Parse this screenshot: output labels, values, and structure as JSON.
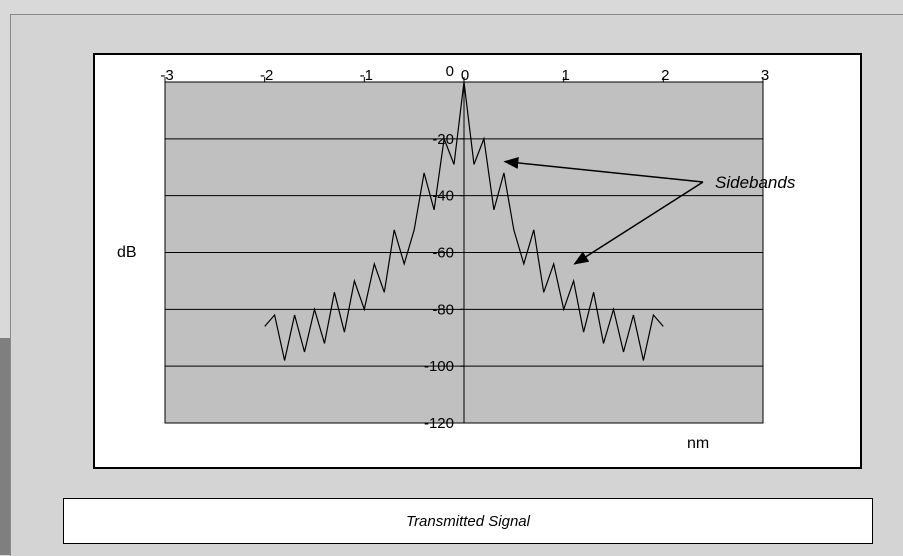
{
  "chart_data": {
    "type": "line",
    "title": "",
    "xlabel": "nm",
    "ylabel": "dB",
    "xlim": [
      -3,
      3
    ],
    "ylim": [
      -120,
      0
    ],
    "x_ticks": [
      "-3",
      "-2",
      "-1",
      "0",
      "1",
      "2",
      "3"
    ],
    "y_ticks": [
      "0",
      "-20",
      "-40",
      "-60",
      "-80",
      "-100",
      "-120"
    ],
    "grid": true,
    "series": [
      {
        "values": [
          [
            -2.0,
            -86
          ],
          [
            -1.9,
            -82
          ],
          [
            -1.8,
            -98
          ],
          [
            -1.7,
            -82
          ],
          [
            -1.6,
            -95
          ],
          [
            -1.5,
            -80
          ],
          [
            -1.4,
            -92
          ],
          [
            -1.3,
            -74
          ],
          [
            -1.2,
            -88
          ],
          [
            -1.1,
            -70
          ],
          [
            -1.0,
            -80
          ],
          [
            -0.9,
            -64
          ],
          [
            -0.8,
            -74
          ],
          [
            -0.7,
            -52
          ],
          [
            -0.6,
            -64
          ],
          [
            -0.5,
            -52
          ],
          [
            -0.4,
            -32
          ],
          [
            -0.3,
            -45
          ],
          [
            -0.2,
            -20
          ],
          [
            -0.1,
            -29
          ],
          [
            0.0,
            0
          ],
          [
            0.1,
            -29
          ],
          [
            0.2,
            -20
          ],
          [
            0.3,
            -45
          ],
          [
            0.4,
            -32
          ],
          [
            0.5,
            -52
          ],
          [
            0.6,
            -64
          ],
          [
            0.7,
            -52
          ],
          [
            0.8,
            -74
          ],
          [
            0.9,
            -64
          ],
          [
            1.0,
            -80
          ],
          [
            1.1,
            -70
          ],
          [
            1.2,
            -88
          ],
          [
            1.3,
            -74
          ],
          [
            1.4,
            -92
          ],
          [
            1.5,
            -80
          ],
          [
            1.6,
            -95
          ],
          [
            1.7,
            -82
          ],
          [
            1.8,
            -98
          ],
          [
            1.9,
            -82
          ],
          [
            2.0,
            -86
          ]
        ]
      }
    ],
    "annotations": [
      {
        "text": "Sidebands",
        "arrow_targets": [
          [
            0.35,
            -28
          ],
          [
            1.05,
            -64
          ]
        ]
      }
    ]
  },
  "caption": "Transmitted Signal",
  "colors": {
    "plot_area": "#c0c0c0",
    "page_bg": "#d4d4d4",
    "line": "#000000"
  }
}
